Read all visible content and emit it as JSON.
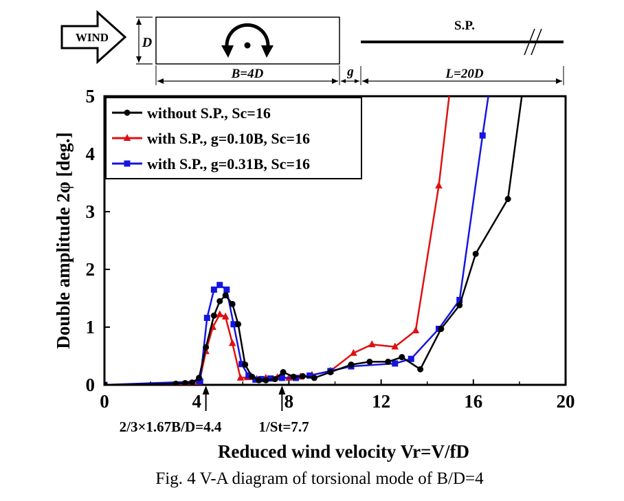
{
  "schematic": {
    "wind_label": "WIND",
    "d_label": "D",
    "b_label": "B=4D",
    "g_label": "g",
    "sp_label": "S.P.",
    "l_label": "L=20D"
  },
  "annotations": {
    "left_arrow_label": "2/3×1.67B/D=4.4",
    "left_arrow_value": 4.4,
    "right_arrow_label": "1/St=7.7",
    "right_arrow_value": 7.7
  },
  "caption": "Fig. 4 V-A diagram of torsional mode of B/D=4",
  "colors": {
    "series_black": "#000000",
    "series_red": "#e01010",
    "series_blue": "#1515e0",
    "axis": "#000000"
  },
  "chart_data": {
    "type": "line",
    "xlabel": "Reduced wind velocity Vr=V/fD",
    "ylabel": "Double amplitude 2φ [deg.]",
    "xlim": [
      0,
      20
    ],
    "ylim": [
      0,
      5
    ],
    "xticks": [
      0,
      4,
      8,
      12,
      16,
      20
    ],
    "yticks": [
      0,
      1,
      2,
      3,
      4,
      5
    ],
    "grid": false,
    "legend_position": "top-left",
    "series": [
      {
        "name": "without S.P., Sc=16",
        "color": "#000000",
        "marker": "circle",
        "x": [
          0,
          3.1,
          3.5,
          3.8,
          4.1,
          4.4,
          4.75,
          5.0,
          5.25,
          5.55,
          5.8,
          6.1,
          6.4,
          6.7,
          7.0,
          7.4,
          7.75,
          8.2,
          8.6,
          9.1,
          9.8,
          10.7,
          11.5,
          12.3,
          12.9,
          13.7,
          14.6,
          15.4,
          16.1,
          17.5,
          18.1
        ],
        "y": [
          0,
          0.02,
          0.03,
          0.04,
          0.12,
          0.65,
          1.2,
          1.45,
          1.55,
          1.4,
          1.05,
          0.35,
          0.14,
          0.08,
          0.08,
          0.1,
          0.22,
          0.14,
          0.15,
          0.12,
          0.22,
          0.35,
          0.4,
          0.4,
          0.48,
          0.27,
          0.97,
          1.38,
          2.27,
          3.22,
          5.0
        ]
      },
      {
        "name": "with S.P., g=0.10B, Sc=16",
        "color": "#e01010",
        "marker": "triangle",
        "x": [
          0,
          3.7,
          4.1,
          4.4,
          4.7,
          5.0,
          5.25,
          5.55,
          5.9,
          6.2,
          6.6,
          7.0,
          7.5,
          8.0,
          8.5,
          9.0,
          9.8,
          10.8,
          11.6,
          12.6,
          13.5,
          14.5,
          14.95
        ],
        "y": [
          0,
          0.01,
          0.02,
          0.58,
          1.0,
          1.22,
          1.18,
          0.72,
          0.12,
          0.13,
          0.1,
          0.12,
          0.13,
          0.12,
          0.14,
          0.17,
          0.24,
          0.55,
          0.7,
          0.66,
          0.94,
          3.45,
          5.0
        ]
      },
      {
        "name": "with S.P., g=0.31B, Sc=16",
        "color": "#1515e0",
        "marker": "square",
        "x": [
          0,
          4.15,
          4.45,
          4.75,
          5.0,
          5.3,
          5.6,
          5.95,
          6.25,
          6.55,
          6.8,
          7.2,
          7.7,
          8.3,
          8.9,
          9.8,
          10.7,
          12.6,
          13.3,
          14.5,
          15.4,
          16.4,
          16.65
        ],
        "y": [
          0,
          0.06,
          1.16,
          1.65,
          1.73,
          1.65,
          1.05,
          0.36,
          0.16,
          0.09,
          0.1,
          0.11,
          0.12,
          0.12,
          0.16,
          0.24,
          0.32,
          0.37,
          0.45,
          0.97,
          1.47,
          4.32,
          5.0
        ]
      }
    ]
  }
}
